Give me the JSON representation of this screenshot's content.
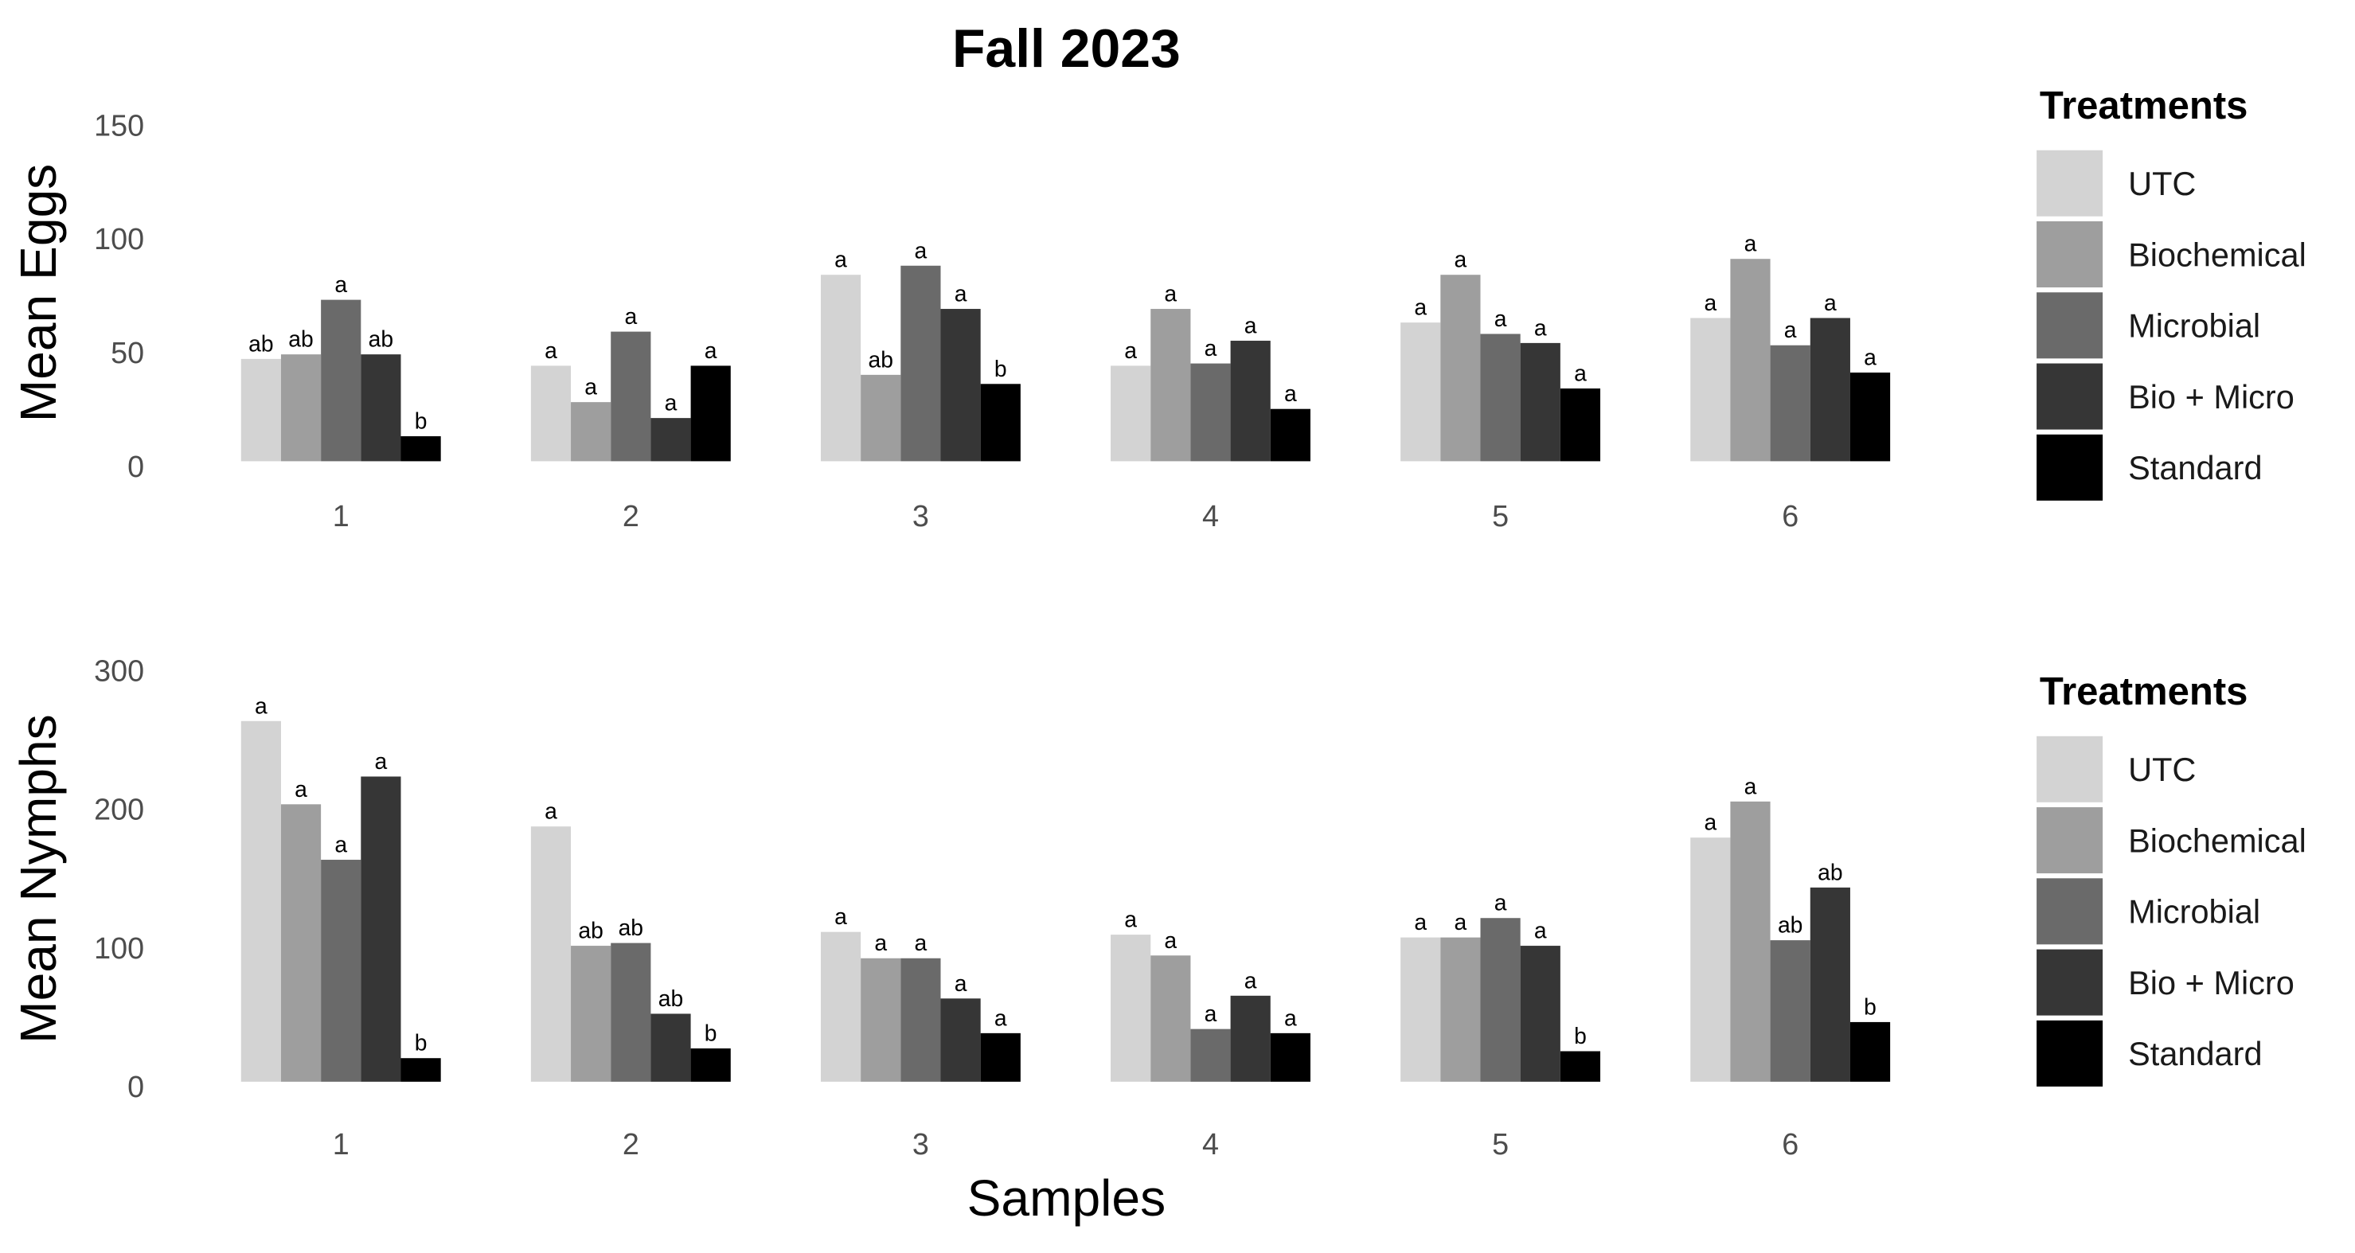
{
  "chart_data": [
    {
      "type": "bar",
      "title": "Fall 2023",
      "ylabel": "Mean Eggs",
      "legend_title": "Treatments",
      "categories": [
        "1",
        "2",
        "3",
        "4",
        "5",
        "6"
      ],
      "ylim": [
        0,
        150
      ],
      "yticks": [
        0,
        50,
        100,
        150
      ],
      "series": [
        {
          "name": "UTC",
          "color": "#d3d3d3",
          "values": [
            45,
            42,
            82,
            42,
            61,
            63
          ],
          "value_labels": [
            "ab",
            "a",
            "a",
            "a",
            "a",
            "a"
          ]
        },
        {
          "name": "Biochemical",
          "color": "#9e9e9e",
          "values": [
            47,
            26,
            38,
            67,
            82,
            89
          ],
          "value_labels": [
            "ab",
            "a",
            "ab",
            "a",
            "a",
            "a"
          ]
        },
        {
          "name": "Microbial",
          "color": "#6a6a6a",
          "values": [
            71,
            57,
            86,
            43,
            56,
            51
          ],
          "value_labels": [
            "a",
            "a",
            "a",
            "a",
            "a",
            "a"
          ]
        },
        {
          "name": "Bio + Micro",
          "color": "#363636",
          "values": [
            47,
            19,
            67,
            53,
            52,
            63
          ],
          "value_labels": [
            "ab",
            "a",
            "a",
            "a",
            "a",
            "a"
          ]
        },
        {
          "name": "Standard",
          "color": "#000000",
          "values": [
            11,
            42,
            34,
            23,
            32,
            39
          ],
          "value_labels": [
            "b",
            "a",
            "b",
            "a",
            "a",
            "a"
          ]
        }
      ]
    },
    {
      "type": "bar",
      "ylabel": "Mean Nymphs",
      "xlabel": "Samples",
      "legend_title": "Treatments",
      "categories": [
        "1",
        "2",
        "3",
        "4",
        "5",
        "6"
      ],
      "ylim": [
        0,
        300
      ],
      "yticks": [
        0,
        100,
        200,
        300
      ],
      "series": [
        {
          "name": "UTC",
          "color": "#d3d3d3",
          "values": [
            260,
            184,
            108,
            106,
            104,
            176
          ],
          "value_labels": [
            "a",
            "a",
            "a",
            "a",
            "a",
            "a"
          ]
        },
        {
          "name": "Biochemical",
          "color": "#9e9e9e",
          "values": [
            200,
            98,
            89,
            91,
            104,
            202
          ],
          "value_labels": [
            "a",
            "ab",
            "a",
            "a",
            "a",
            "a"
          ]
        },
        {
          "name": "Microbial",
          "color": "#6a6a6a",
          "values": [
            160,
            100,
            89,
            38,
            118,
            102
          ],
          "value_labels": [
            "a",
            "ab",
            "a",
            "a",
            "a",
            "ab"
          ]
        },
        {
          "name": "Bio + Micro",
          "color": "#363636",
          "values": [
            220,
            49,
            60,
            62,
            98,
            140
          ],
          "value_labels": [
            "a",
            "ab",
            "a",
            "a",
            "a",
            "ab"
          ]
        },
        {
          "name": "Standard",
          "color": "#000000",
          "values": [
            17,
            24,
            35,
            35,
            22,
            43
          ],
          "value_labels": [
            "b",
            "b",
            "a",
            "a",
            "b",
            "b"
          ]
        }
      ]
    }
  ]
}
